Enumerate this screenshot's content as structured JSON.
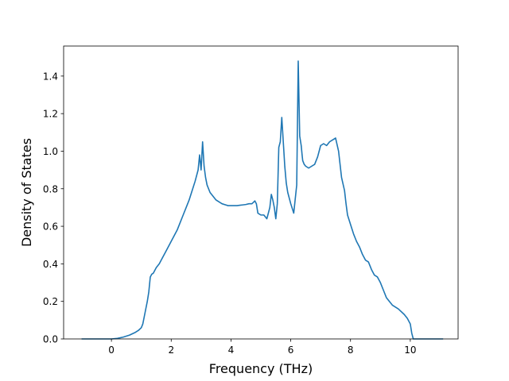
{
  "chart_data": {
    "type": "line",
    "title": "",
    "xlabel": "Frequency (THz)",
    "ylabel": "Density of States",
    "xlim": [
      -1.6,
      11.6
    ],
    "ylim": [
      0.0,
      1.56
    ],
    "x_ticks": [
      0,
      2,
      4,
      6,
      8,
      10
    ],
    "y_ticks": [
      0.0,
      0.2,
      0.4,
      0.6,
      0.8,
      1.0,
      1.2,
      1.4
    ],
    "grid": false,
    "legend": "none",
    "colors": {
      "line": "#1f77b4",
      "axes": "#000000",
      "background": "#ffffff"
    },
    "series": [
      {
        "x": [
          -1.0,
          -0.5,
          0.0,
          0.2,
          0.4,
          0.6,
          0.8,
          0.9,
          1.0,
          1.05,
          1.1,
          1.15,
          1.2,
          1.25,
          1.3,
          1.35,
          1.4,
          1.5,
          1.6,
          1.7,
          1.8,
          1.9,
          2.0,
          2.1,
          2.2,
          2.3,
          2.4,
          2.5,
          2.6,
          2.7,
          2.8,
          2.9,
          2.95,
          3.0,
          3.05,
          3.1,
          3.15,
          3.2,
          3.3,
          3.4,
          3.5,
          3.6,
          3.7,
          3.8,
          3.9,
          4.0,
          4.1,
          4.2,
          4.3,
          4.4,
          4.5,
          4.6,
          4.7,
          4.8,
          4.85,
          4.9,
          5.0,
          5.1,
          5.2,
          5.3,
          5.35,
          5.4,
          5.45,
          5.5,
          5.55,
          5.6,
          5.65,
          5.7,
          5.75,
          5.8,
          5.85,
          5.9,
          6.0,
          6.1,
          6.2,
          6.25,
          6.3,
          6.35,
          6.38,
          6.4,
          6.45,
          6.5,
          6.6,
          6.7,
          6.8,
          6.9,
          7.0,
          7.1,
          7.2,
          7.3,
          7.4,
          7.5,
          7.6,
          7.7,
          7.8,
          7.85,
          7.9,
          8.0,
          8.1,
          8.2,
          8.3,
          8.4,
          8.5,
          8.6,
          8.7,
          8.8,
          8.9,
          9.0,
          9.1,
          9.2,
          9.4,
          9.6,
          9.8,
          9.9,
          10.0,
          10.05,
          10.1,
          10.2,
          10.5,
          11.1
        ],
        "values": [
          0.0,
          0.0,
          0.0,
          0.003,
          0.01,
          0.02,
          0.035,
          0.045,
          0.06,
          0.08,
          0.12,
          0.16,
          0.2,
          0.25,
          0.33,
          0.345,
          0.35,
          0.38,
          0.4,
          0.43,
          0.46,
          0.49,
          0.52,
          0.55,
          0.58,
          0.62,
          0.66,
          0.7,
          0.74,
          0.79,
          0.84,
          0.9,
          0.98,
          0.9,
          1.05,
          0.92,
          0.86,
          0.82,
          0.78,
          0.76,
          0.74,
          0.73,
          0.72,
          0.715,
          0.71,
          0.71,
          0.71,
          0.71,
          0.712,
          0.714,
          0.716,
          0.72,
          0.72,
          0.735,
          0.72,
          0.67,
          0.66,
          0.66,
          0.64,
          0.7,
          0.77,
          0.74,
          0.7,
          0.64,
          0.72,
          1.02,
          1.05,
          1.18,
          1.05,
          0.92,
          0.83,
          0.78,
          0.72,
          0.67,
          0.82,
          1.48,
          1.08,
          1.03,
          0.98,
          0.95,
          0.93,
          0.92,
          0.91,
          0.92,
          0.93,
          0.97,
          1.03,
          1.04,
          1.03,
          1.05,
          1.06,
          1.07,
          1.0,
          0.86,
          0.79,
          0.72,
          0.66,
          0.61,
          0.56,
          0.52,
          0.49,
          0.45,
          0.42,
          0.41,
          0.37,
          0.34,
          0.33,
          0.3,
          0.26,
          0.22,
          0.18,
          0.16,
          0.13,
          0.11,
          0.08,
          0.03,
          0.0,
          0.0,
          0.0,
          0.0
        ]
      }
    ]
  }
}
